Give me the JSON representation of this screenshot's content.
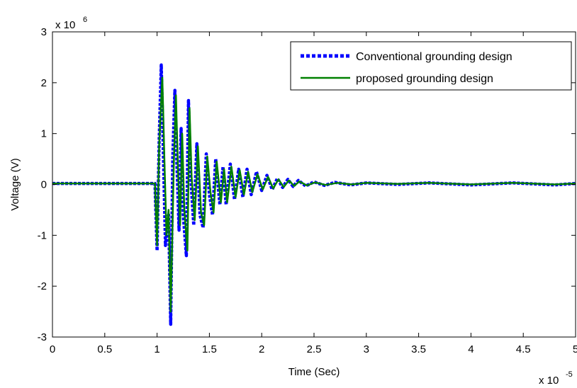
{
  "chart_data": {
    "type": "line",
    "xlabel": "Time (Sec)",
    "ylabel": "Voltage (V)",
    "x_multiplier_label": "x 10",
    "x_multiplier_exponent": "-5",
    "y_multiplier_label": "x 10",
    "y_multiplier_exponent": "6",
    "xlim": [
      0,
      5
    ],
    "ylim": [
      -3,
      3
    ],
    "x_ticks": [
      0,
      0.5,
      1,
      1.5,
      2,
      2.5,
      3,
      3.5,
      4,
      4.5,
      5
    ],
    "x_tick_labels": [
      "0",
      "0.5",
      "1",
      "1.5",
      "2",
      "2.5",
      "3",
      "3.5",
      "4",
      "4.5",
      "5"
    ],
    "y_ticks": [
      -3,
      -2,
      -1,
      0,
      1,
      2,
      3
    ],
    "y_tick_labels": [
      "-3",
      "-2",
      "-1",
      "0",
      "1",
      "2",
      "3"
    ],
    "legend_position": "top-right",
    "grid": false,
    "series": [
      {
        "name": "Conventional grounding design",
        "color": "#0000ff",
        "style": "dotted",
        "points": [
          [
            0,
            0.02
          ],
          [
            0.98,
            0.02
          ],
          [
            1.0,
            -1.3
          ],
          [
            1.02,
            0.9
          ],
          [
            1.04,
            2.35
          ],
          [
            1.06,
            0.6
          ],
          [
            1.08,
            -1.2
          ],
          [
            1.11,
            -0.6
          ],
          [
            1.13,
            -2.75
          ],
          [
            1.15,
            0.5
          ],
          [
            1.17,
            1.85
          ],
          [
            1.19,
            0.4
          ],
          [
            1.21,
            -0.9
          ],
          [
            1.23,
            1.1
          ],
          [
            1.25,
            -0.6
          ],
          [
            1.28,
            -1.4
          ],
          [
            1.3,
            1.65
          ],
          [
            1.32,
            0.2
          ],
          [
            1.35,
            -0.8
          ],
          [
            1.38,
            0.8
          ],
          [
            1.41,
            -0.6
          ],
          [
            1.44,
            -0.85
          ],
          [
            1.47,
            0.6
          ],
          [
            1.5,
            -0.2
          ],
          [
            1.53,
            -0.6
          ],
          [
            1.56,
            0.5
          ],
          [
            1.6,
            -0.4
          ],
          [
            1.63,
            0.35
          ],
          [
            1.66,
            -0.4
          ],
          [
            1.7,
            0.4
          ],
          [
            1.74,
            -0.3
          ],
          [
            1.78,
            0.3
          ],
          [
            1.82,
            -0.25
          ],
          [
            1.86,
            0.3
          ],
          [
            1.9,
            -0.2
          ],
          [
            1.95,
            0.25
          ],
          [
            2.0,
            -0.12
          ],
          [
            2.05,
            0.18
          ],
          [
            2.1,
            -0.1
          ],
          [
            2.15,
            0.12
          ],
          [
            2.2,
            -0.06
          ],
          [
            2.25,
            0.1
          ],
          [
            2.3,
            -0.04
          ],
          [
            2.35,
            0.08
          ],
          [
            2.42,
            -0.03
          ],
          [
            2.5,
            0.05
          ],
          [
            2.6,
            -0.02
          ],
          [
            2.7,
            0.04
          ],
          [
            2.85,
            -0.01
          ],
          [
            3.0,
            0.03
          ],
          [
            3.3,
            0.0
          ],
          [
            3.6,
            0.03
          ],
          [
            4.0,
            -0.01
          ],
          [
            4.4,
            0.03
          ],
          [
            4.8,
            -0.01
          ],
          [
            5.0,
            0.02
          ]
        ]
      },
      {
        "name": "proposed grounding design",
        "color": "#008000",
        "style": "solid",
        "points": [
          [
            0,
            0.02
          ],
          [
            0.98,
            0.02
          ],
          [
            1.0,
            -1.2
          ],
          [
            1.02,
            0.8
          ],
          [
            1.05,
            2.1
          ],
          [
            1.07,
            0.5
          ],
          [
            1.09,
            -1.0
          ],
          [
            1.11,
            -0.5
          ],
          [
            1.13,
            -2.5
          ],
          [
            1.16,
            0.4
          ],
          [
            1.18,
            1.75
          ],
          [
            1.2,
            0.3
          ],
          [
            1.22,
            -0.8
          ],
          [
            1.24,
            1.0
          ],
          [
            1.26,
            -0.5
          ],
          [
            1.29,
            -1.3
          ],
          [
            1.31,
            1.5
          ],
          [
            1.33,
            0.15
          ],
          [
            1.36,
            -0.7
          ],
          [
            1.39,
            0.75
          ],
          [
            1.42,
            -0.55
          ],
          [
            1.45,
            -0.8
          ],
          [
            1.48,
            0.55
          ],
          [
            1.51,
            -0.15
          ],
          [
            1.54,
            -0.55
          ],
          [
            1.57,
            0.45
          ],
          [
            1.61,
            -0.35
          ],
          [
            1.64,
            0.3
          ],
          [
            1.67,
            -0.35
          ],
          [
            1.71,
            0.35
          ],
          [
            1.75,
            -0.25
          ],
          [
            1.79,
            0.28
          ],
          [
            1.83,
            -0.2
          ],
          [
            1.87,
            0.25
          ],
          [
            1.91,
            -0.15
          ],
          [
            1.96,
            0.2
          ],
          [
            2.01,
            -0.1
          ],
          [
            2.06,
            0.15
          ],
          [
            2.11,
            -0.08
          ],
          [
            2.16,
            0.1
          ],
          [
            2.21,
            -0.05
          ],
          [
            2.26,
            0.08
          ],
          [
            2.31,
            -0.03
          ],
          [
            2.36,
            0.06
          ],
          [
            2.43,
            -0.02
          ],
          [
            2.51,
            0.04
          ],
          [
            2.61,
            -0.01
          ],
          [
            2.72,
            0.03
          ],
          [
            2.86,
            0.0
          ],
          [
            3.0,
            0.03
          ],
          [
            3.3,
            0.01
          ],
          [
            3.6,
            0.03
          ],
          [
            4.0,
            0.0
          ],
          [
            4.4,
            0.03
          ],
          [
            4.8,
            0.0
          ],
          [
            5.0,
            0.02
          ]
        ]
      }
    ]
  }
}
